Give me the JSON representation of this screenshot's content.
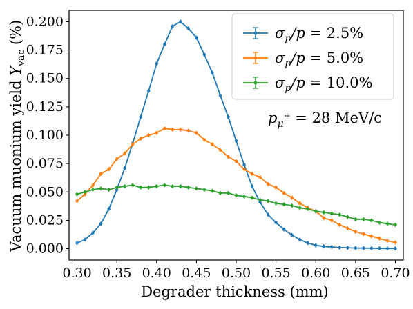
{
  "chart_data": {
    "type": "line",
    "xlabel": "Degrader thickness (mm)",
    "ylabel": "Vacuum muonium yield Y_vac (%)",
    "xlim": [
      0.29,
      0.71
    ],
    "ylim": [
      -0.01,
      0.21
    ],
    "x_ticks": [
      "0.30",
      "0.35",
      "0.40",
      "0.45",
      "0.50",
      "0.55",
      "0.60",
      "0.65",
      "0.70"
    ],
    "y_ticks": [
      "0.000",
      "0.025",
      "0.050",
      "0.075",
      "0.100",
      "0.125",
      "0.150",
      "0.175",
      "0.200"
    ],
    "grid": false,
    "legend_position": "top-right",
    "annotation": "p_μ+ = 28 MeV/c",
    "x": [
      0.3,
      0.31,
      0.32,
      0.33,
      0.34,
      0.35,
      0.36,
      0.37,
      0.38,
      0.39,
      0.4,
      0.41,
      0.42,
      0.43,
      0.44,
      0.45,
      0.46,
      0.47,
      0.48,
      0.49,
      0.5,
      0.51,
      0.52,
      0.53,
      0.54,
      0.55,
      0.56,
      0.57,
      0.58,
      0.59,
      0.6,
      0.61,
      0.62,
      0.63,
      0.64,
      0.65,
      0.66,
      0.67,
      0.68,
      0.69,
      0.7
    ],
    "series": [
      {
        "name": "σp/p = 2.5%",
        "color": "#1f77b4",
        "values": [
          0.005,
          0.008,
          0.014,
          0.022,
          0.035,
          0.052,
          0.071,
          0.093,
          0.116,
          0.139,
          0.163,
          0.18,
          0.196,
          0.2,
          0.194,
          0.186,
          0.171,
          0.155,
          0.135,
          0.116,
          0.095,
          0.074,
          0.055,
          0.041,
          0.03,
          0.023,
          0.017,
          0.012,
          0.008,
          0.005,
          0.003,
          0.002,
          0.0015,
          0.001,
          0.0008,
          0.0006,
          0.0005,
          0.0004,
          0.0003,
          0.0002,
          0.0002
        ]
      },
      {
        "name": "σp/p = 5.0%",
        "color": "#ff7f0e",
        "values": [
          0.042,
          0.048,
          0.056,
          0.066,
          0.07,
          0.079,
          0.084,
          0.092,
          0.097,
          0.1,
          0.102,
          0.106,
          0.105,
          0.105,
          0.104,
          0.102,
          0.096,
          0.092,
          0.087,
          0.081,
          0.077,
          0.07,
          0.066,
          0.063,
          0.057,
          0.054,
          0.049,
          0.045,
          0.04,
          0.036,
          0.033,
          0.027,
          0.025,
          0.021,
          0.018,
          0.015,
          0.013,
          0.011,
          0.009,
          0.007,
          0.0055
        ]
      },
      {
        "name": "σp/p = 10.0%",
        "color": "#2ca02c",
        "values": [
          0.048,
          0.05,
          0.052,
          0.053,
          0.052,
          0.054,
          0.055,
          0.056,
          0.054,
          0.054,
          0.055,
          0.056,
          0.055,
          0.055,
          0.054,
          0.053,
          0.052,
          0.051,
          0.049,
          0.049,
          0.047,
          0.046,
          0.045,
          0.043,
          0.042,
          0.04,
          0.039,
          0.038,
          0.036,
          0.035,
          0.033,
          0.032,
          0.031,
          0.03,
          0.028,
          0.026,
          0.026,
          0.025,
          0.023,
          0.022,
          0.021
        ]
      }
    ]
  }
}
